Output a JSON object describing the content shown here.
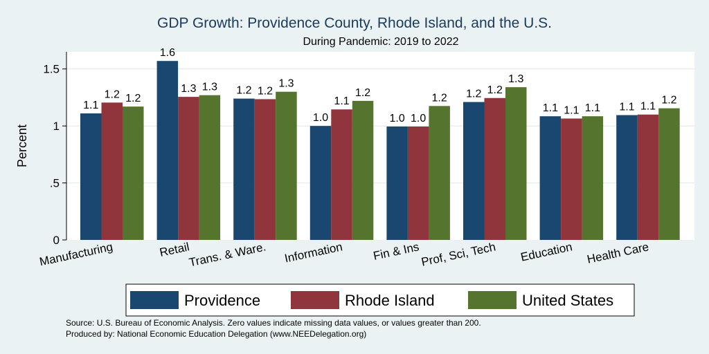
{
  "chart_data": {
    "type": "bar",
    "title": "GDP Growth: Providence County, Rhode Island, and the U.S.",
    "subtitle": "During Pandemic: 2019 to 2022",
    "ylabel": "Percent",
    "xlabel": "",
    "ylim": [
      0,
      1.65
    ],
    "yticks": [
      0,
      0.5,
      1,
      1.5
    ],
    "ytick_labels": [
      "0",
      ".5",
      "1",
      "1.5"
    ],
    "grid": true,
    "legend_position": "bottom",
    "categories": [
      "Manufacturing",
      "Retail",
      "Trans. & Ware.",
      "Information",
      "Fin & Ins",
      "Prof, Sci, Tech",
      "Education",
      "Health Care"
    ],
    "series": [
      {
        "name": "Providence",
        "color": "#1a476f",
        "values": [
          1.11,
          1.57,
          1.24,
          1.0,
          0.995,
          1.21,
          1.085,
          1.095
        ],
        "labels": [
          "1.1",
          "1.6",
          "1.2",
          "1.0",
          "1.0",
          "1.2",
          "1.1",
          "1.1"
        ]
      },
      {
        "name": "Rhode Island",
        "color": "#90353b",
        "values": [
          1.205,
          1.255,
          1.235,
          1.145,
          0.995,
          1.245,
          1.065,
          1.1
        ],
        "labels": [
          "1.2",
          "1.3",
          "1.2",
          "1.1",
          "1.0",
          "1.2",
          "1.1",
          "1.1"
        ]
      },
      {
        "name": "United States",
        "color": "#55752f",
        "values": [
          1.17,
          1.27,
          1.3,
          1.22,
          1.175,
          1.34,
          1.085,
          1.155
        ],
        "labels": [
          "1.2",
          "1.3",
          "1.3",
          "1.2",
          "1.2",
          "1.3",
          "1.1",
          "1.2"
        ]
      }
    ]
  },
  "footer": {
    "source": "Source: U.S. Bureau of Economic Analysis. Zero values indicate missing data values, or values greater than 200.",
    "produced_by": "Produced by: National Economic Education Delegation (www.NEEDelegation.org)"
  }
}
